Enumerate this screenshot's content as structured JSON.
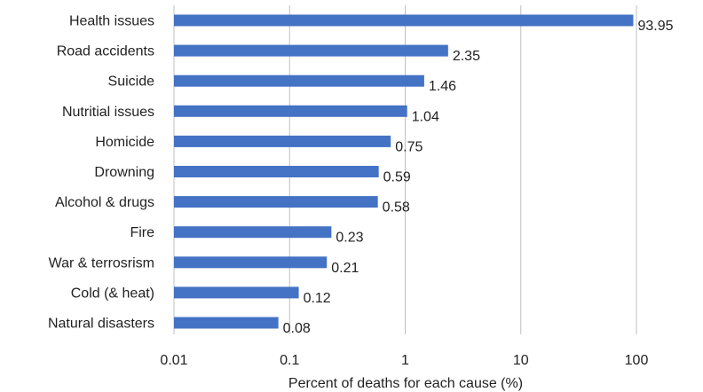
{
  "chart_data": {
    "type": "bar",
    "orientation": "horizontal",
    "categories": [
      "Health issues",
      "Road accidents",
      "Suicide",
      "Nutritial issues",
      "Homicide",
      "Drowning",
      "Alcohol & drugs",
      "Fire",
      "War & terrosrism",
      "Cold (& heat)",
      "Natural disasters"
    ],
    "values": [
      93.95,
      2.35,
      1.46,
      1.04,
      0.75,
      0.59,
      0.58,
      0.23,
      0.21,
      0.12,
      0.08
    ],
    "value_labels": [
      "93.95",
      "2.35",
      "1.46",
      "1.04",
      "0.75",
      "0.59",
      "0.58",
      "0.23",
      "0.21",
      "0.12",
      "0.08"
    ],
    "xlabel": "Percent of deaths for each cause (%)",
    "ylabel": "",
    "xscale": "log",
    "xlim": [
      0.01,
      100
    ],
    "xticks": [
      0.01,
      0.1,
      1,
      10,
      100
    ],
    "xtick_labels": [
      "0.01",
      "0.1",
      "1",
      "10",
      "100"
    ],
    "grid": "vertical",
    "legend": "none",
    "bar_color": "#4472C4"
  }
}
